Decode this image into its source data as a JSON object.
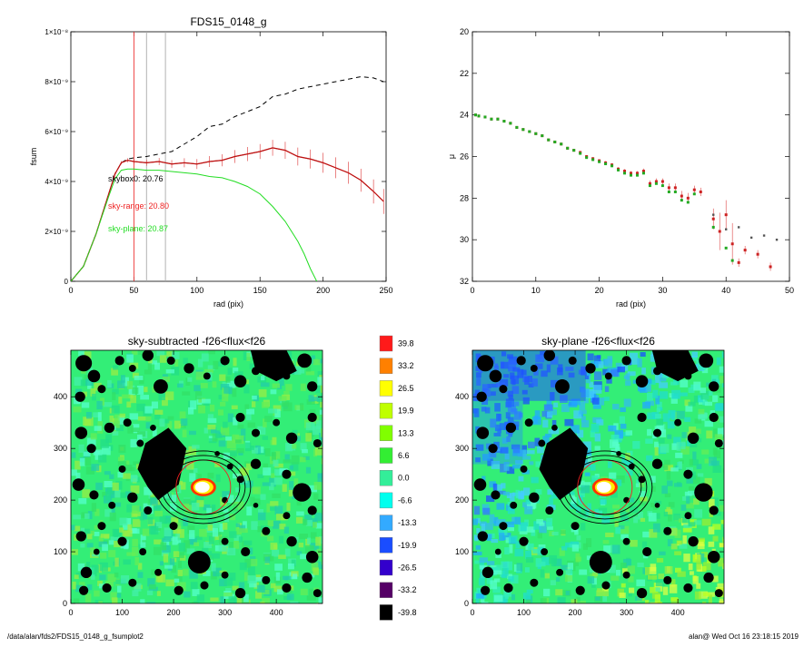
{
  "footer": {
    "path": "/data/alan/fds2/FDS15_0148_g_fsumplot2",
    "user_time": "alan@  Wed Oct 16 23:18:15 2019"
  },
  "chart_data": [
    {
      "type": "line",
      "title": "FDS15_0148_g",
      "xlabel": "rad (pix)",
      "ylabel": "fsum",
      "xlim": [
        0,
        250
      ],
      "ylim": [
        0,
        1e-08
      ],
      "xticks": [
        "0",
        "50",
        "100",
        "150",
        "200",
        "250"
      ],
      "yticks": [
        "0",
        "2×10⁻⁹",
        "4×10⁻⁹",
        "6×10⁻⁹",
        "8×10⁻⁹",
        "1×10⁻⁸"
      ],
      "vlines": [
        {
          "x": 50,
          "color": "#ee3333"
        },
        {
          "x": 60,
          "color": "#aaaaaa"
        },
        {
          "x": 75,
          "color": "#aaaaaa"
        }
      ],
      "annotations": [
        {
          "text": "skybox0: 20.76",
          "color": "#000000"
        },
        {
          "text": "sky-range: 20.80",
          "color": "#ee2222"
        },
        {
          "text": "sky-plane: 20.87",
          "color": "#22dd22"
        }
      ],
      "series": [
        {
          "style": "dashed",
          "color": "#000000",
          "x": [
            0,
            10,
            20,
            30,
            35,
            40,
            45,
            50,
            60,
            70,
            80,
            90,
            100,
            110,
            120,
            130,
            140,
            150,
            160,
            170,
            180,
            190,
            200,
            210,
            220,
            230,
            240,
            248
          ],
          "y": [
            0,
            6e-10,
            1.9e-09,
            3.5e-09,
            4.3e-09,
            4.75e-09,
            4.9e-09,
            4.95e-09,
            5e-09,
            5.1e-09,
            5.2e-09,
            5.5e-09,
            5.8e-09,
            6.2e-09,
            6.3e-09,
            6.6e-09,
            6.8e-09,
            7e-09,
            7.4e-09,
            7.5e-09,
            7.7e-09,
            7.8e-09,
            7.9e-09,
            8e-09,
            8.1e-09,
            8.2e-09,
            8.15e-09,
            8e-09
          ]
        },
        {
          "style": "solid",
          "color": "#ee2222",
          "errorbars": true,
          "x": [
            0,
            10,
            20,
            30,
            35,
            40,
            45,
            50,
            60,
            70,
            80,
            90,
            100,
            110,
            120,
            130,
            140,
            150,
            160,
            170,
            180,
            190,
            200,
            210,
            220,
            230,
            240,
            248
          ],
          "y": [
            0,
            6e-10,
            1.9e-09,
            3.5e-09,
            4.3e-09,
            4.75e-09,
            4.85e-09,
            4.8e-09,
            4.75e-09,
            4.8e-09,
            4.7e-09,
            4.75e-09,
            4.7e-09,
            4.8e-09,
            4.85e-09,
            5e-09,
            5.1e-09,
            5.2e-09,
            5.35e-09,
            5.25e-09,
            5e-09,
            4.9e-09,
            4.75e-09,
            4.55e-09,
            4.35e-09,
            4.05e-09,
            3.6e-09,
            3.2e-09
          ],
          "err": [
            0,
            2e-11,
            3e-11,
            5e-11,
            6e-11,
            7e-11,
            8e-11,
            1e-10,
            1.2e-10,
            1.4e-10,
            1.6e-10,
            1.8e-10,
            2e-10,
            2.2e-10,
            2.4e-10,
            2.6e-10,
            2.8e-10,
            3e-10,
            3.2e-10,
            3.4e-10,
            3.6e-10,
            3.8e-10,
            4e-10,
            4.2e-10,
            4.4e-10,
            4.6e-10,
            4.8e-10,
            5e-10
          ]
        },
        {
          "style": "solid",
          "color": "#22dd22",
          "x": [
            0,
            10,
            20,
            30,
            35,
            40,
            45,
            50,
            60,
            70,
            80,
            90,
            100,
            110,
            120,
            130,
            140,
            150,
            160,
            170,
            180,
            185,
            190,
            195
          ],
          "y": [
            0,
            6e-10,
            1.9e-09,
            3.4e-09,
            4.1e-09,
            4.45e-09,
            4.5e-09,
            4.5e-09,
            4.45e-09,
            4.45e-09,
            4.4e-09,
            4.35e-09,
            4.3e-09,
            4.2e-09,
            4.15e-09,
            4e-09,
            3.8e-09,
            3.5e-09,
            3e-09,
            2.4e-09,
            1.6e-09,
            1.1e-09,
            5e-10,
            0
          ]
        }
      ]
    },
    {
      "type": "scatter",
      "xlabel": "rad (pix)",
      "ylabel": "μ",
      "xlim": [
        0,
        50
      ],
      "ylim": [
        32,
        20
      ],
      "xticks": [
        "0",
        "10",
        "20",
        "30",
        "40",
        "50"
      ],
      "yticks": [
        "20",
        "22",
        "24",
        "26",
        "28",
        "30",
        "32"
      ],
      "series": [
        {
          "color": "#cc2222",
          "points": [
            [
              0.5,
              24.0
            ],
            [
              1,
              24.05
            ],
            [
              2,
              24.1
            ],
            [
              3,
              24.2
            ],
            [
              4,
              24.2
            ],
            [
              5,
              24.3
            ],
            [
              6,
              24.4
            ],
            [
              7,
              24.6
            ],
            [
              8,
              24.7
            ],
            [
              9,
              24.8
            ],
            [
              10,
              24.9
            ],
            [
              11,
              25.0
            ],
            [
              12,
              25.2
            ],
            [
              13,
              25.3
            ],
            [
              14,
              25.4
            ],
            [
              15,
              25.6
            ],
            [
              16,
              25.7
            ],
            [
              17,
              25.8
            ],
            [
              18,
              26.0
            ],
            [
              19,
              26.1
            ],
            [
              20,
              26.2
            ],
            [
              21,
              26.3
            ],
            [
              22,
              26.4
            ],
            [
              23,
              26.6
            ],
            [
              24,
              26.7
            ],
            [
              25,
              26.8
            ],
            [
              26,
              26.8
            ],
            [
              27,
              26.7
            ],
            [
              28,
              27.3
            ],
            [
              29,
              27.2
            ],
            [
              30,
              27.2
            ],
            [
              31,
              27.5
            ],
            [
              32,
              27.5
            ],
            [
              33,
              27.9
            ],
            [
              34,
              28.0
            ],
            [
              35,
              27.6
            ],
            [
              36,
              27.7
            ],
            [
              38,
              29.0
            ],
            [
              39,
              29.6
            ],
            [
              40,
              28.8
            ],
            [
              41,
              30.2
            ],
            [
              42,
              31.1
            ],
            [
              43,
              30.5
            ],
            [
              45,
              30.7
            ],
            [
              47,
              31.3
            ]
          ],
          "err": [
            0.05,
            0.05,
            0.05,
            0.05,
            0.05,
            0.05,
            0.05,
            0.05,
            0.05,
            0.05,
            0.05,
            0.05,
            0.05,
            0.05,
            0.05,
            0.06,
            0.06,
            0.06,
            0.07,
            0.07,
            0.07,
            0.08,
            0.08,
            0.09,
            0.1,
            0.1,
            0.1,
            0.12,
            0.15,
            0.15,
            0.15,
            0.2,
            0.2,
            0.25,
            0.25,
            0.2,
            0.2,
            0.5,
            0.9,
            0.7,
            1.0,
            0.2,
            0.2,
            0.2,
            0.2
          ]
        },
        {
          "color": "#22aa22",
          "points": [
            [
              0.5,
              24.0
            ],
            [
              1,
              24.05
            ],
            [
              2,
              24.1
            ],
            [
              3,
              24.2
            ],
            [
              4,
              24.2
            ],
            [
              5,
              24.3
            ],
            [
              6,
              24.4
            ],
            [
              7,
              24.6
            ],
            [
              8,
              24.7
            ],
            [
              9,
              24.8
            ],
            [
              10,
              24.9
            ],
            [
              11,
              25.0
            ],
            [
              12,
              25.2
            ],
            [
              13,
              25.3
            ],
            [
              14,
              25.4
            ],
            [
              15,
              25.6
            ],
            [
              16,
              25.7
            ],
            [
              17,
              25.85
            ],
            [
              18,
              26.05
            ],
            [
              19,
              26.15
            ],
            [
              20,
              26.25
            ],
            [
              21,
              26.35
            ],
            [
              22,
              26.45
            ],
            [
              23,
              26.65
            ],
            [
              24,
              26.8
            ],
            [
              25,
              26.9
            ],
            [
              26,
              26.9
            ],
            [
              27,
              26.8
            ],
            [
              28,
              27.4
            ],
            [
              29,
              27.3
            ],
            [
              30,
              27.4
            ],
            [
              31,
              27.7
            ],
            [
              32,
              27.7
            ],
            [
              33,
              28.1
            ],
            [
              34,
              28.2
            ],
            [
              35,
              27.8
            ],
            [
              38,
              29.4
            ],
            [
              40,
              30.4
            ],
            [
              41,
              31.0
            ]
          ]
        },
        {
          "color": "#555555",
          "points": [
            [
              38,
              28.8
            ],
            [
              40,
              29.5
            ],
            [
              42,
              29.4
            ],
            [
              44,
              29.9
            ],
            [
              46,
              29.8
            ],
            [
              48,
              30.0
            ]
          ]
        }
      ]
    },
    {
      "type": "heatmap",
      "title": "sky-subtracted -f26<flux<f26",
      "xlim": [
        0,
        490
      ],
      "ylim": [
        0,
        490
      ],
      "xticks": [
        "0",
        "100",
        "200",
        "300",
        "400"
      ],
      "yticks": [
        "0",
        "100",
        "200",
        "300",
        "400"
      ]
    },
    {
      "type": "heatmap",
      "title": "sky-plane -f26<flux<f26",
      "xlim": [
        0,
        490
      ],
      "ylim": [
        0,
        490
      ],
      "xticks": [
        "0",
        "100",
        "200",
        "300",
        "400"
      ],
      "yticks": [
        "0",
        "100",
        "200",
        "300",
        "400"
      ]
    },
    {
      "type": "colorbar",
      "labels": [
        "39.8",
        "33.2",
        "26.5",
        "19.9",
        "13.3",
        "6.6",
        "0.0",
        "-6.6",
        "-13.3",
        "-19.9",
        "-26.5",
        "-33.2",
        "-39.8"
      ],
      "colors": [
        "#ff1a1a",
        "#ff8000",
        "#ffff00",
        "#bfff00",
        "#80ff00",
        "#33ee33",
        "#33ee99",
        "#00ffee",
        "#33aaff",
        "#1a4dff",
        "#3300cc",
        "#550066",
        "#000000"
      ]
    }
  ]
}
